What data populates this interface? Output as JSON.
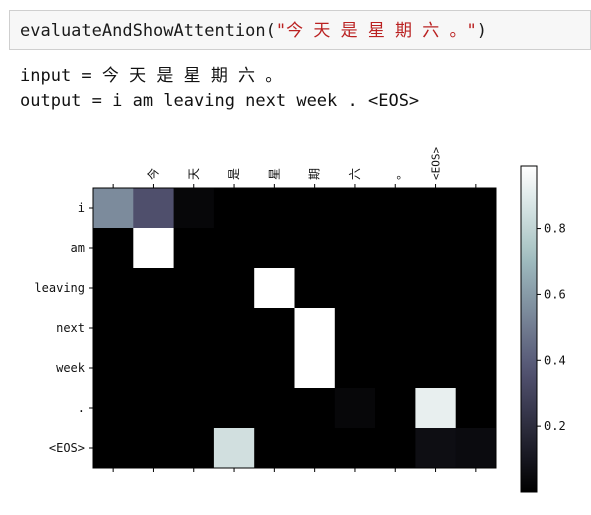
{
  "cell": {
    "code_prefix": "evaluateAndShowAttention(",
    "code_string": "\"今 天 是 星 期 六 。\"",
    "code_suffix": ")"
  },
  "output": {
    "input_line": "input = 今 天 是 星 期 六 。",
    "output_line": "output = i am leaving next week . <EOS>"
  },
  "chart_data": {
    "type": "heatmap",
    "x_labels": [
      "今",
      "天",
      "是",
      "星",
      "期",
      "六",
      "。",
      "<EOS>"
    ],
    "y_labels": [
      "i",
      "am",
      "leaving",
      "next",
      "week",
      ".",
      "<EOS>"
    ],
    "n_cols": 10,
    "values": [
      [
        0.55,
        0.35,
        0.03,
        0.0,
        0.0,
        0.0,
        0.0,
        0.0,
        0.0,
        0.0
      ],
      [
        0.0,
        1.0,
        0.0,
        0.0,
        0.0,
        0.0,
        0.0,
        0.0,
        0.0,
        0.0
      ],
      [
        0.0,
        0.0,
        0.0,
        0.0,
        1.0,
        0.0,
        0.0,
        0.0,
        0.0,
        0.0
      ],
      [
        0.0,
        0.0,
        0.0,
        0.0,
        0.0,
        1.0,
        0.0,
        0.0,
        0.0,
        0.0
      ],
      [
        0.0,
        0.0,
        0.0,
        0.0,
        0.0,
        1.0,
        0.0,
        0.0,
        0.0,
        0.0
      ],
      [
        0.0,
        0.0,
        0.0,
        0.0,
        0.0,
        0.0,
        0.03,
        0.0,
        0.92,
        0.0
      ],
      [
        0.0,
        0.0,
        0.0,
        0.85,
        0.0,
        0.0,
        0.0,
        0.0,
        0.06,
        0.05
      ]
    ],
    "colormap": "bone",
    "colorbar_ticks": [
      0.2,
      0.4,
      0.6,
      0.8
    ],
    "colorbar_tick_labels": [
      "0.2",
      "0.4",
      "0.6",
      "0.8"
    ],
    "colorbar_range": [
      0.0,
      0.99
    ]
  }
}
